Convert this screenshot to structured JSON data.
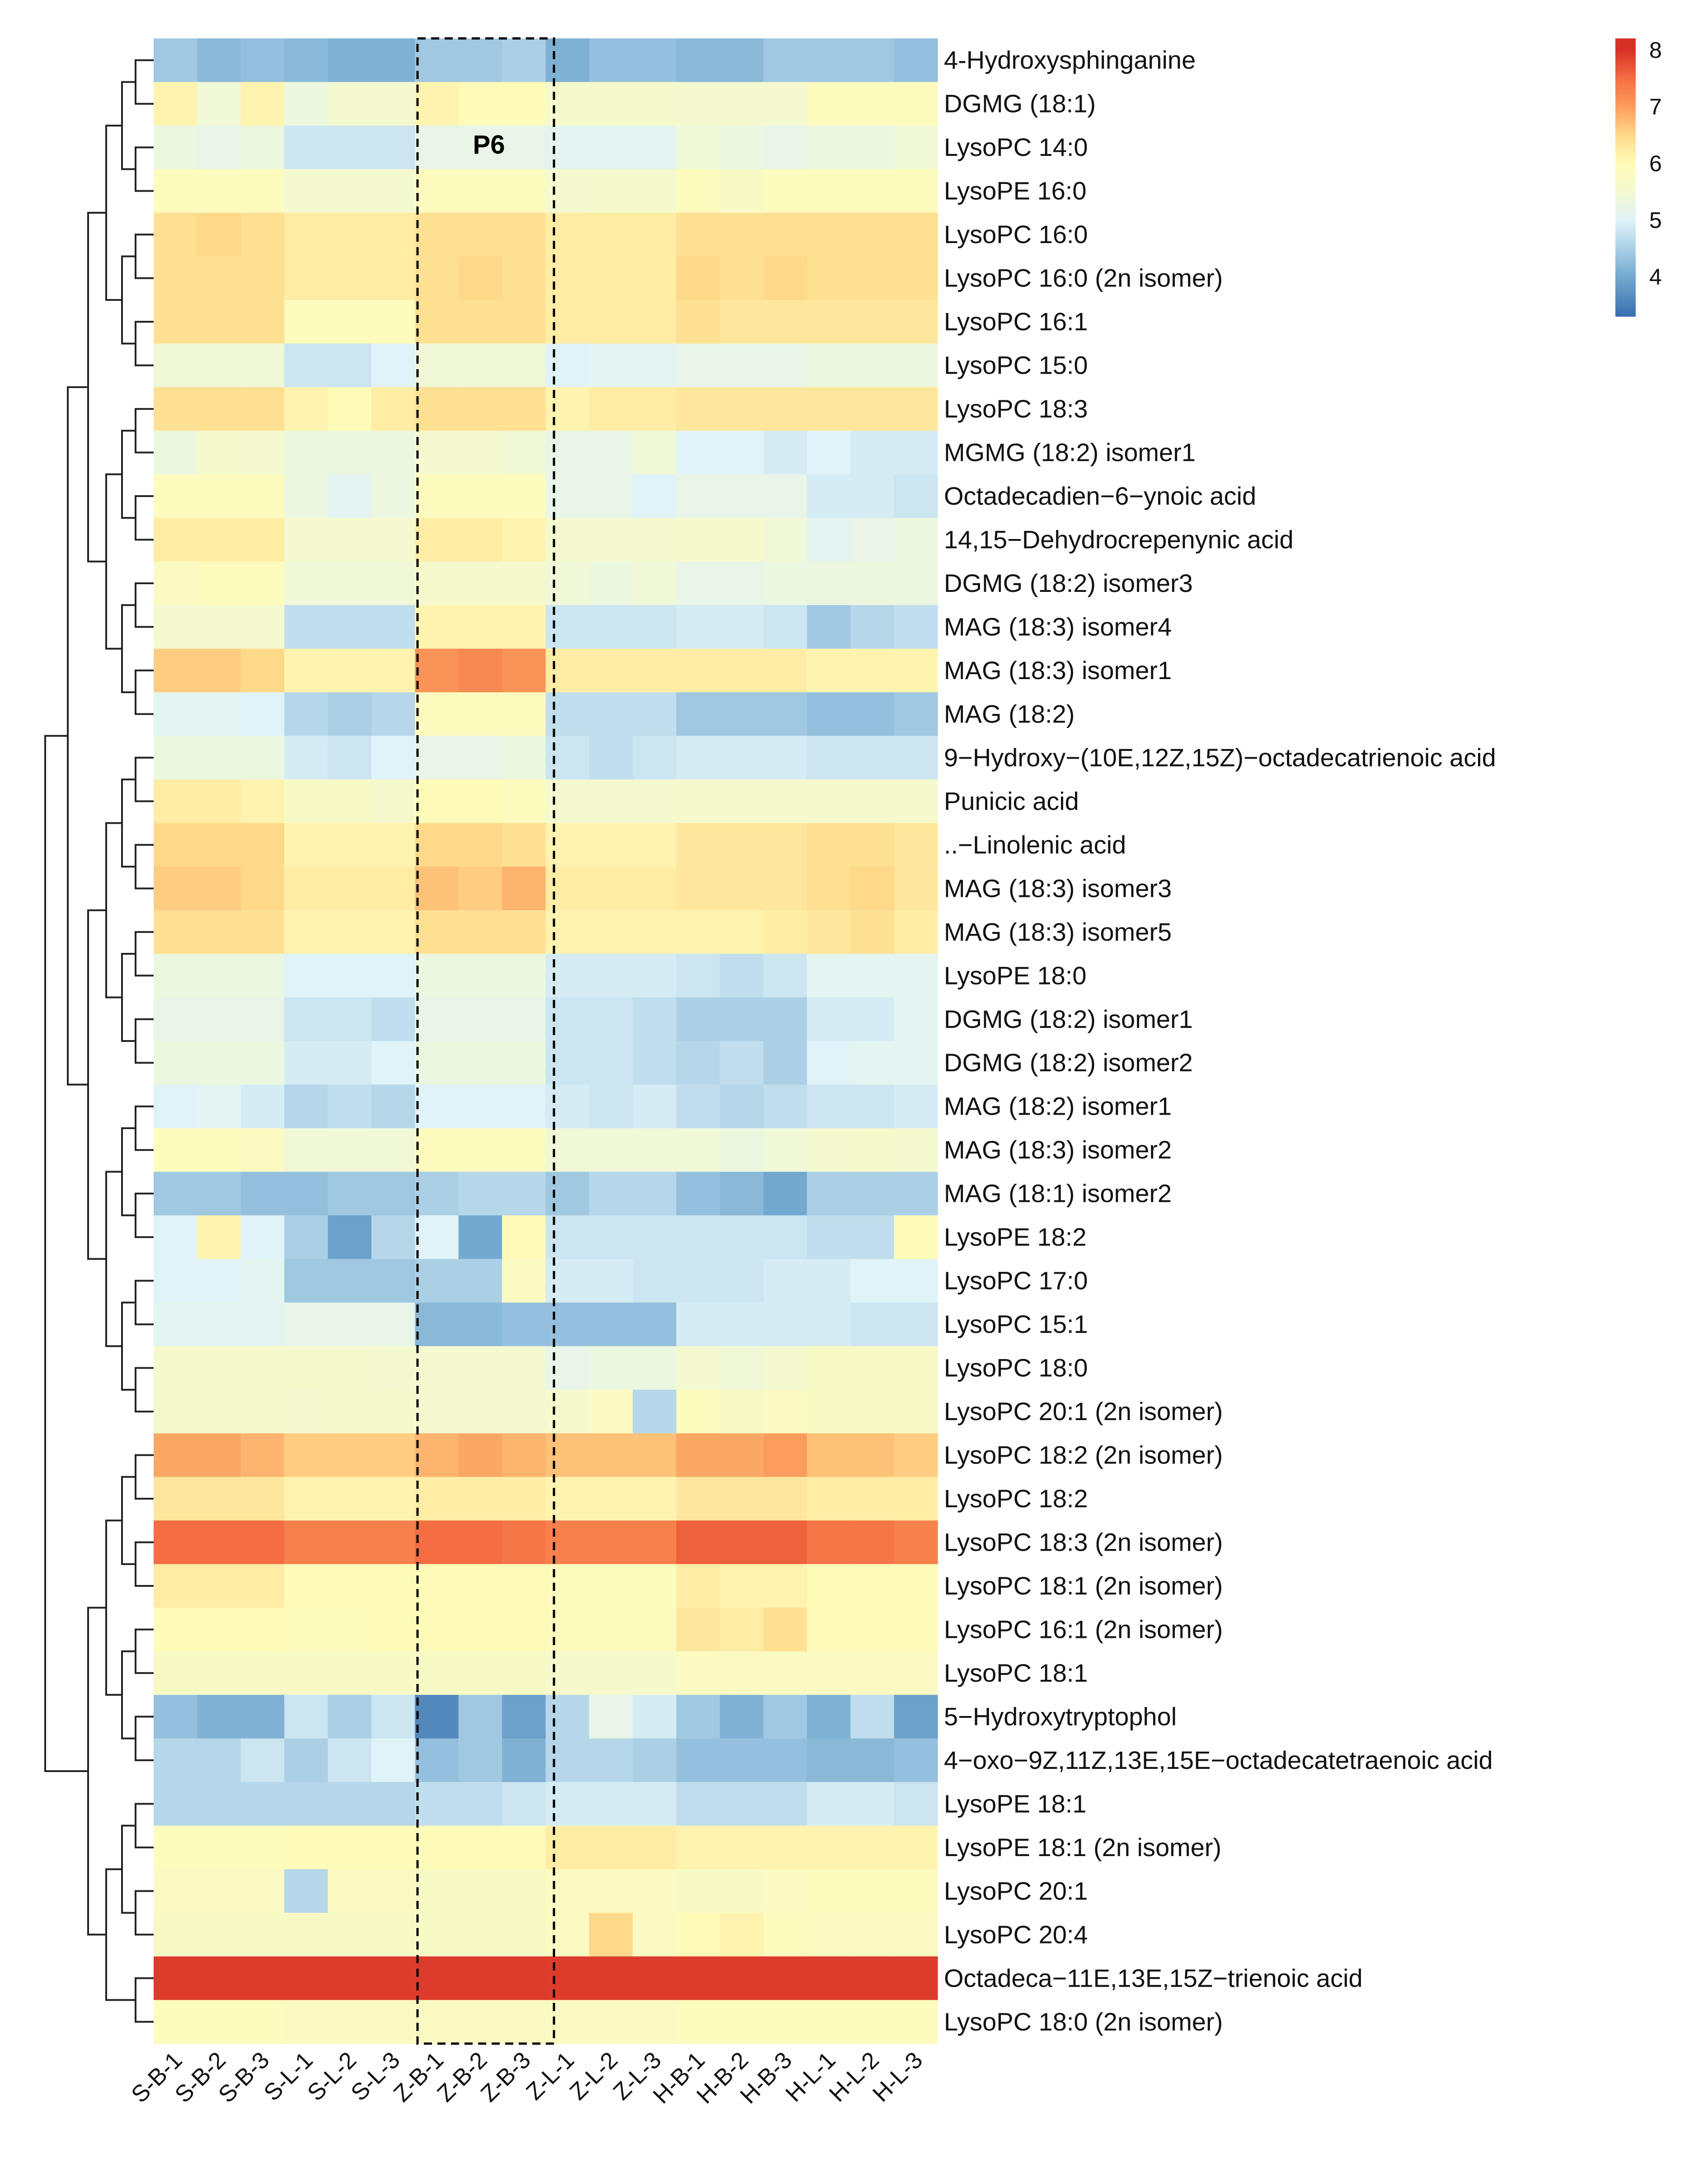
{
  "chart_data": {
    "type": "heatmap",
    "title": "",
    "annotation": "P6",
    "highlighted_columns": [
      "Z-B-1",
      "Z-B-2",
      "Z-B-3"
    ],
    "columns": [
      "S-B-1",
      "S-B-2",
      "S-B-3",
      "S-L-1",
      "S-L-2",
      "S-L-3",
      "Z-B-1",
      "Z-B-2",
      "Z-B-3",
      "Z-L-1",
      "Z-L-2",
      "Z-L-3",
      "H-B-1",
      "H-B-2",
      "H-B-3",
      "H-L-1",
      "H-L-2",
      "H-L-3"
    ],
    "rows": [
      "4-Hydroxysphinganine",
      "DGMG (18:1)",
      "LysoPC 14:0",
      "LysoPE 16:0",
      "LysoPC 16:0",
      "LysoPC 16:0 (2n isomer)",
      "LysoPC 16:1",
      "LysoPC 15:0",
      "LysoPC 18:3",
      "MGMG (18:2) isomer1",
      "Octadecadien−6−ynoic acid",
      "14,15−Dehydrocrepenynic acid",
      "DGMG (18:2) isomer3",
      "MAG (18:3) isomer4",
      "MAG (18:3) isomer1",
      "MAG (18:2)",
      "9−Hydroxy−(10E,12Z,15Z)−octadecatrienoic acid",
      "Punicic acid",
      "..−Linolenic acid",
      "MAG (18:3) isomer3",
      "MAG (18:3) isomer5",
      "LysoPE 18:0",
      "DGMG (18:2) isomer1",
      "DGMG (18:2) isomer2",
      "MAG (18:2) isomer1",
      "MAG (18:3) isomer2",
      "MAG (18:1) isomer2",
      "LysoPE 18:2",
      "LysoPC 17:0",
      "LysoPC 15:1",
      "LysoPC 18:0",
      "LysoPC 20:1 (2n isomer)",
      "LysoPC 18:2 (2n isomer)",
      "LysoPC 18:2",
      "LysoPC 18:3 (2n isomer)",
      "LysoPC 18:1 (2n isomer)",
      "LysoPC 16:1 (2n isomer)",
      "LysoPC 18:1",
      "5−Hydroxytryptophol",
      "4−oxo−9Z,11Z,13E,15E−octadecatetraenoic acid",
      "LysoPE 18:1",
      "LysoPE 18:1 (2n isomer)",
      "LysoPC 20:1",
      "LysoPC 20:4",
      "Octadeca−11E,13E,15Z−trienoic acid",
      "LysoPC 18:0 (2n isomer)"
    ],
    "values": [
      [
        4.4,
        4.2,
        4.3,
        4.2,
        4.1,
        4.1,
        4.4,
        4.4,
        4.5,
        4.1,
        4.3,
        4.3,
        4.2,
        4.2,
        4.4,
        4.4,
        4.4,
        4.3
      ],
      [
        6.1,
        5.4,
        6.1,
        5.3,
        5.5,
        5.5,
        6.1,
        6.0,
        6.0,
        5.6,
        5.6,
        5.6,
        5.5,
        5.5,
        5.5,
        5.9,
        5.9,
        5.9
      ],
      [
        5.3,
        5.2,
        5.3,
        4.8,
        4.8,
        4.8,
        5.2,
        5.2,
        5.2,
        5.1,
        5.1,
        5.1,
        5.4,
        5.3,
        5.2,
        5.3,
        5.3,
        5.4
      ],
      [
        5.9,
        5.9,
        5.9,
        5.5,
        5.5,
        5.5,
        5.9,
        5.9,
        5.9,
        5.5,
        5.6,
        5.6,
        5.9,
        5.7,
        5.9,
        5.9,
        5.9,
        5.9
      ],
      [
        6.4,
        6.5,
        6.4,
        6.2,
        6.2,
        6.2,
        6.4,
        6.4,
        6.4,
        6.2,
        6.2,
        6.2,
        6.4,
        6.4,
        6.4,
        6.4,
        6.4,
        6.4
      ],
      [
        6.4,
        6.4,
        6.4,
        6.2,
        6.2,
        6.2,
        6.4,
        6.5,
        6.4,
        6.2,
        6.2,
        6.2,
        6.5,
        6.4,
        6.5,
        6.4,
        6.4,
        6.4
      ],
      [
        6.4,
        6.4,
        6.4,
        5.9,
        5.9,
        5.9,
        6.4,
        6.4,
        6.4,
        6.2,
        6.2,
        6.2,
        6.4,
        6.3,
        6.3,
        6.3,
        6.3,
        6.3
      ],
      [
        5.4,
        5.4,
        5.4,
        4.8,
        4.8,
        5.0,
        5.4,
        5.4,
        5.4,
        5.0,
        5.1,
        5.1,
        5.2,
        5.2,
        5.2,
        5.3,
        5.3,
        5.3
      ],
      [
        6.4,
        6.4,
        6.4,
        6.1,
        6.0,
        6.2,
        6.4,
        6.4,
        6.4,
        6.1,
        6.2,
        6.2,
        6.3,
        6.3,
        6.3,
        6.3,
        6.3,
        6.3
      ],
      [
        5.3,
        5.6,
        5.5,
        5.3,
        5.3,
        5.3,
        5.5,
        5.5,
        5.4,
        5.2,
        5.2,
        5.4,
        5.0,
        5.0,
        4.9,
        5.0,
        4.9,
        4.9
      ],
      [
        5.9,
        5.9,
        5.9,
        5.3,
        5.1,
        5.3,
        5.9,
        5.9,
        5.9,
        5.2,
        5.2,
        5.0,
        5.2,
        5.2,
        5.2,
        4.9,
        4.9,
        4.8
      ],
      [
        6.2,
        6.2,
        6.2,
        5.5,
        5.5,
        5.5,
        6.2,
        6.2,
        6.1,
        5.5,
        5.5,
        5.5,
        5.6,
        5.6,
        5.4,
        5.1,
        5.2,
        5.3
      ],
      [
        5.8,
        5.9,
        5.9,
        5.4,
        5.4,
        5.4,
        5.6,
        5.6,
        5.6,
        5.4,
        5.3,
        5.4,
        5.2,
        5.2,
        5.3,
        5.3,
        5.3,
        5.3
      ],
      [
        5.5,
        5.5,
        5.5,
        4.7,
        4.7,
        4.7,
        6.1,
        6.1,
        6.1,
        4.8,
        4.8,
        4.8,
        4.9,
        4.9,
        4.8,
        4.4,
        4.6,
        4.7
      ],
      [
        6.6,
        6.6,
        6.5,
        6.1,
        6.1,
        6.1,
        7.1,
        7.2,
        7.1,
        6.2,
        6.2,
        6.2,
        6.2,
        6.2,
        6.2,
        6.1,
        6.1,
        6.1
      ],
      [
        5.1,
        5.1,
        5.0,
        4.6,
        4.5,
        4.6,
        5.9,
        5.9,
        5.9,
        4.7,
        4.7,
        4.7,
        4.4,
        4.4,
        4.4,
        4.3,
        4.3,
        4.4
      ],
      [
        5.3,
        5.3,
        5.3,
        4.9,
        4.8,
        5.0,
        5.2,
        5.2,
        5.3,
        4.8,
        4.7,
        4.8,
        4.9,
        4.9,
        4.9,
        4.8,
        4.8,
        4.8
      ],
      [
        6.2,
        6.2,
        6.1,
        5.7,
        5.7,
        5.6,
        6.0,
        6.0,
        5.9,
        5.5,
        5.5,
        5.5,
        5.6,
        5.6,
        5.6,
        5.6,
        5.6,
        5.6
      ],
      [
        6.5,
        6.5,
        6.5,
        6.1,
        6.1,
        6.1,
        6.5,
        6.5,
        6.4,
        6.1,
        6.1,
        6.1,
        6.3,
        6.3,
        6.3,
        6.4,
        6.4,
        6.3
      ],
      [
        6.6,
        6.6,
        6.5,
        6.2,
        6.2,
        6.2,
        6.7,
        6.6,
        6.8,
        6.2,
        6.2,
        6.2,
        6.3,
        6.3,
        6.3,
        6.4,
        6.5,
        6.3
      ],
      [
        6.4,
        6.4,
        6.4,
        6.1,
        6.1,
        6.1,
        6.4,
        6.4,
        6.4,
        6.1,
        6.1,
        6.1,
        6.1,
        6.1,
        6.2,
        6.3,
        6.4,
        6.2
      ],
      [
        5.3,
        5.3,
        5.3,
        5.0,
        5.0,
        5.0,
        5.3,
        5.3,
        5.3,
        4.9,
        4.9,
        4.9,
        4.8,
        4.7,
        4.8,
        5.1,
        5.1,
        5.1
      ],
      [
        5.2,
        5.2,
        5.2,
        4.8,
        4.8,
        4.7,
        5.2,
        5.2,
        5.2,
        4.8,
        4.8,
        4.7,
        4.5,
        4.5,
        4.5,
        4.9,
        4.9,
        5.1
      ],
      [
        5.3,
        5.3,
        5.3,
        4.9,
        4.9,
        5.0,
        5.3,
        5.3,
        5.3,
        4.8,
        4.8,
        4.7,
        4.6,
        4.7,
        4.5,
        5.0,
        5.1,
        5.1
      ],
      [
        5.0,
        5.1,
        4.9,
        4.6,
        4.7,
        4.6,
        5.0,
        5.0,
        5.0,
        4.9,
        4.8,
        4.9,
        4.7,
        4.6,
        4.7,
        4.8,
        4.8,
        4.9
      ],
      [
        5.9,
        5.9,
        5.8,
        5.4,
        5.4,
        5.4,
        5.9,
        5.9,
        5.9,
        5.4,
        5.4,
        5.4,
        5.4,
        5.3,
        5.4,
        5.5,
        5.6,
        5.5
      ],
      [
        4.4,
        4.4,
        4.3,
        4.3,
        4.4,
        4.4,
        4.5,
        4.6,
        4.6,
        4.4,
        4.6,
        4.6,
        4.3,
        4.2,
        4.0,
        4.5,
        4.5,
        4.5
      ],
      [
        5.0,
        6.1,
        5.0,
        4.5,
        3.9,
        4.6,
        5.0,
        4.0,
        6.0,
        4.8,
        4.8,
        4.8,
        4.8,
        4.8,
        4.8,
        4.7,
        4.7,
        6.0
      ],
      [
        5.0,
        5.0,
        5.1,
        4.4,
        4.4,
        4.4,
        4.5,
        4.5,
        5.8,
        4.9,
        4.9,
        4.8,
        4.8,
        4.8,
        4.9,
        4.9,
        5.0,
        5.0
      ],
      [
        5.1,
        5.1,
        5.1,
        5.2,
        5.2,
        5.2,
        4.2,
        4.2,
        4.3,
        4.3,
        4.3,
        4.3,
        4.9,
        4.9,
        4.9,
        4.9,
        4.8,
        4.8
      ],
      [
        5.6,
        5.6,
        5.6,
        5.6,
        5.6,
        5.5,
        5.5,
        5.5,
        5.5,
        5.2,
        5.3,
        5.3,
        5.5,
        5.4,
        5.5,
        5.7,
        5.7,
        5.7
      ],
      [
        5.6,
        5.6,
        5.6,
        5.5,
        5.6,
        5.6,
        5.5,
        5.5,
        5.5,
        5.6,
        5.8,
        4.6,
        5.9,
        5.7,
        5.8,
        5.7,
        5.7,
        5.7
      ],
      [
        6.9,
        6.9,
        6.8,
        6.6,
        6.6,
        6.6,
        6.8,
        6.9,
        6.8,
        6.7,
        6.7,
        6.7,
        6.9,
        6.9,
        7.0,
        6.7,
        6.7,
        6.6
      ],
      [
        6.3,
        6.3,
        6.3,
        6.1,
        6.1,
        6.1,
        6.2,
        6.2,
        6.2,
        6.1,
        6.1,
        6.1,
        6.3,
        6.3,
        6.3,
        6.2,
        6.2,
        6.2
      ],
      [
        7.5,
        7.5,
        7.5,
        7.3,
        7.3,
        7.3,
        7.5,
        7.5,
        7.4,
        7.3,
        7.3,
        7.3,
        7.6,
        7.6,
        7.6,
        7.4,
        7.4,
        7.3
      ],
      [
        6.2,
        6.2,
        6.2,
        6.0,
        6.0,
        6.0,
        6.0,
        6.0,
        6.0,
        5.9,
        5.9,
        5.9,
        6.2,
        6.1,
        6.1,
        6.0,
        6.0,
        6.0
      ],
      [
        6.0,
        6.0,
        6.0,
        5.9,
        5.9,
        6.0,
        6.0,
        6.0,
        6.0,
        5.9,
        5.9,
        5.9,
        6.3,
        6.2,
        6.4,
        6.0,
        6.0,
        6.0
      ],
      [
        5.7,
        5.7,
        5.7,
        5.7,
        5.7,
        5.7,
        5.7,
        5.7,
        5.7,
        5.6,
        5.6,
        5.6,
        5.8,
        5.8,
        5.8,
        5.8,
        5.8,
        5.8
      ],
      [
        4.3,
        4.1,
        4.1,
        4.8,
        4.5,
        4.8,
        3.6,
        4.4,
        3.9,
        4.6,
        5.2,
        4.9,
        4.4,
        4.1,
        4.4,
        4.1,
        4.7,
        3.9
      ],
      [
        4.6,
        4.6,
        4.8,
        4.5,
        4.8,
        5.0,
        4.3,
        4.4,
        4.1,
        4.6,
        4.6,
        4.5,
        4.3,
        4.3,
        4.3,
        4.2,
        4.2,
        4.3
      ],
      [
        4.6,
        4.6,
        4.6,
        4.6,
        4.6,
        4.6,
        4.7,
        4.7,
        4.8,
        4.9,
        4.9,
        4.9,
        4.7,
        4.7,
        4.7,
        4.9,
        4.9,
        4.8
      ],
      [
        5.9,
        5.9,
        5.9,
        6.0,
        6.0,
        6.0,
        6.0,
        6.0,
        6.0,
        6.2,
        6.2,
        6.2,
        6.1,
        6.1,
        6.1,
        6.1,
        6.1,
        6.1
      ],
      [
        5.8,
        5.8,
        5.8,
        4.6,
        5.8,
        5.8,
        5.7,
        5.7,
        5.7,
        5.8,
        5.8,
        5.8,
        5.7,
        5.7,
        5.8,
        5.9,
        5.9,
        5.9
      ],
      [
        5.7,
        5.7,
        5.7,
        5.7,
        5.7,
        5.7,
        5.7,
        5.7,
        5.7,
        5.8,
        6.5,
        5.8,
        6.0,
        6.1,
        5.9,
        5.8,
        5.8,
        5.8
      ],
      [
        7.9,
        7.9,
        7.9,
        7.9,
        7.9,
        7.9,
        7.9,
        7.9,
        7.9,
        7.9,
        7.9,
        7.9,
        7.9,
        7.9,
        7.9,
        7.9,
        7.9,
        7.9
      ],
      [
        5.9,
        5.9,
        5.9,
        5.8,
        5.8,
        5.8,
        5.8,
        5.8,
        5.8,
        5.8,
        5.8,
        5.8,
        5.9,
        5.9,
        5.9,
        5.9,
        5.9,
        5.9
      ]
    ],
    "colorbar": {
      "ticks": [
        "8",
        "7",
        "6",
        "5",
        "4"
      ],
      "range": [
        3.3,
        8.2
      ],
      "colors": [
        "#3a6fb0",
        "#74a9cf",
        "#abd0e6",
        "#e0f3f8",
        "#f4f9d0",
        "#fffbb8",
        "#fed98a",
        "#fc9c5c",
        "#f46d43",
        "#d73027"
      ]
    },
    "row_dendrogram": true
  }
}
